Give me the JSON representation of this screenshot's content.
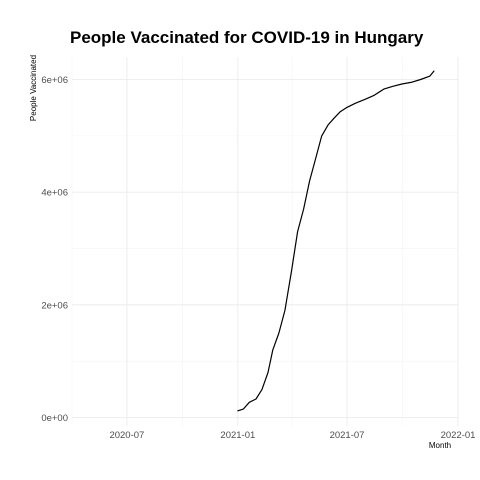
{
  "chart_data": {
    "type": "line",
    "title": "People Vaccinated for COVID-19 in Hungary",
    "xlabel": "Month",
    "ylabel": "People Vaccinated",
    "xlim": [
      "2020-04-01",
      "2022-01-01"
    ],
    "ylim": [
      -150000,
      6400000
    ],
    "x_ticks": [
      "2020-07-01",
      "2021-01-01",
      "2021-07-01",
      "2022-01-01"
    ],
    "x_tick_labels": [
      "2020-07",
      "2021-01",
      "2021-07",
      "2022-01"
    ],
    "y_ticks": [
      0,
      2000000,
      4000000,
      6000000
    ],
    "y_tick_labels": [
      "0e+00",
      "2e+06",
      "4e+06",
      "6e+06"
    ],
    "grid": true,
    "legend": "none",
    "series": [
      {
        "x": [
          "2021-01-01",
          "2021-01-10",
          "2021-01-20",
          "2021-01-31",
          "2021-02-10",
          "2021-02-20",
          "2021-02-28",
          "2021-03-10",
          "2021-03-20",
          "2021-03-31",
          "2021-04-10",
          "2021-04-20",
          "2021-04-30",
          "2021-05-10",
          "2021-05-20",
          "2021-05-31",
          "2021-06-10",
          "2021-06-20",
          "2021-06-30",
          "2021-07-15",
          "2021-07-31",
          "2021-08-15",
          "2021-08-31",
          "2021-09-15",
          "2021-09-30",
          "2021-10-15",
          "2021-10-31",
          "2021-11-15",
          "2021-11-22"
        ],
        "y": [
          120000,
          150000,
          270000,
          330000,
          500000,
          800000,
          1200000,
          1500000,
          1900000,
          2600000,
          3300000,
          3700000,
          4200000,
          4600000,
          5000000,
          5200000,
          5320000,
          5430000,
          5500000,
          5580000,
          5650000,
          5720000,
          5830000,
          5880000,
          5920000,
          5950000,
          6000000,
          6060000,
          6150000
        ]
      }
    ]
  }
}
